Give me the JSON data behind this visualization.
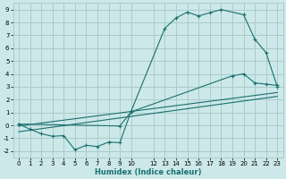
{
  "xlabel": "Humidex (Indice chaleur)",
  "background_color": "#cce8e8",
  "grid_color": "#aacccc",
  "line_color": "#1a7070",
  "xlim": [
    -0.5,
    23.5
  ],
  "ylim": [
    -2.5,
    9.5
  ],
  "xticks": [
    0,
    1,
    2,
    3,
    4,
    5,
    6,
    7,
    8,
    9,
    10,
    12,
    13,
    14,
    15,
    16,
    17,
    18,
    19,
    20,
    21,
    22,
    23
  ],
  "yticks": [
    -2,
    -1,
    0,
    1,
    2,
    3,
    4,
    5,
    6,
    7,
    8,
    9
  ],
  "line1_x": [
    0,
    1,
    2,
    3,
    4,
    5,
    6,
    7,
    8,
    9,
    10,
    13,
    14,
    15,
    16,
    17,
    18,
    20,
    21,
    22,
    23
  ],
  "line1_y": [
    0.1,
    -0.3,
    -0.65,
    -0.85,
    -0.8,
    -1.9,
    -1.55,
    -1.65,
    -1.3,
    -1.35,
    1.1,
    7.55,
    8.35,
    8.8,
    8.5,
    8.75,
    9.0,
    8.6,
    6.7,
    5.65,
    3.0
  ],
  "line2_x": [
    0,
    23
  ],
  "line2_y": [
    -0.05,
    2.55
  ],
  "line3_x": [
    0,
    23
  ],
  "line3_y": [
    -0.5,
    2.25
  ],
  "line4_x": [
    0,
    9,
    10,
    19,
    20,
    21,
    22,
    23
  ],
  "line4_y": [
    0.1,
    -0.05,
    1.05,
    3.85,
    4.0,
    3.3,
    3.2,
    3.1
  ]
}
